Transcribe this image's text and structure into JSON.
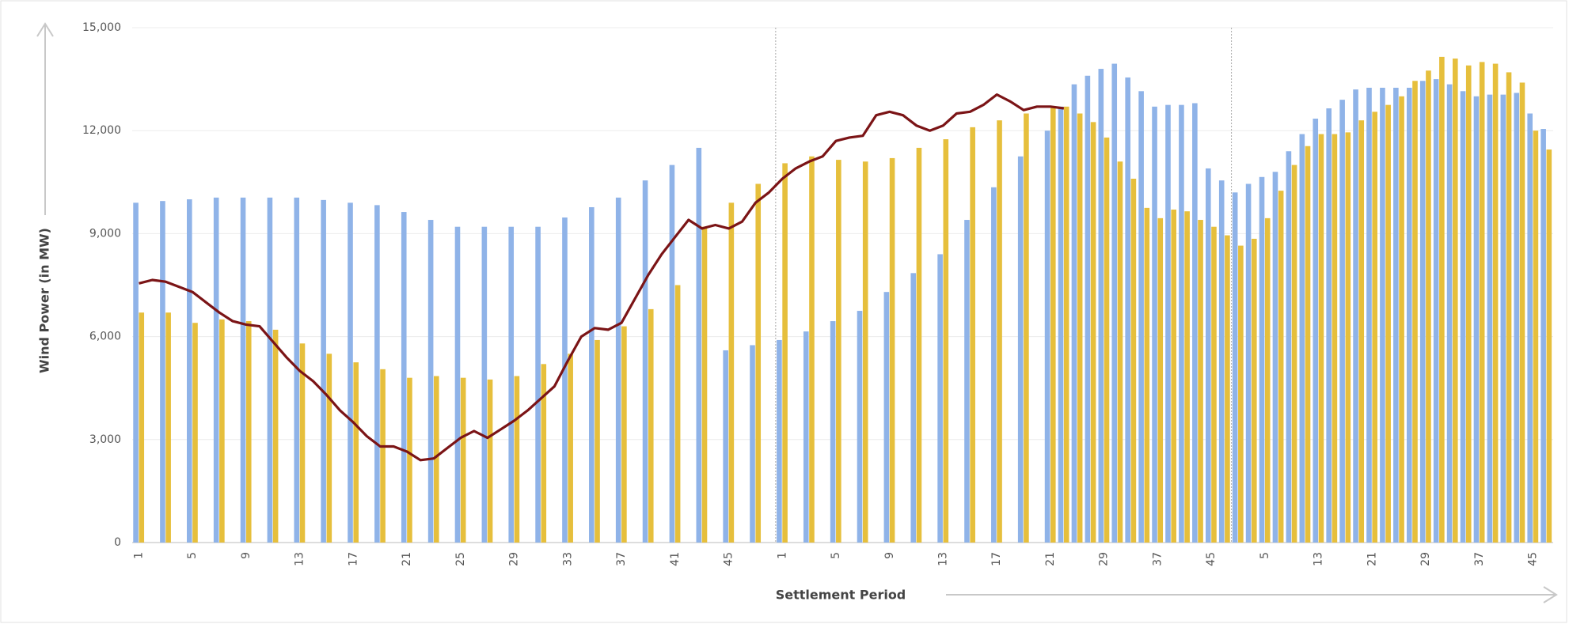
{
  "chart_data": {
    "type": "bar",
    "x_label": "Settlement Period",
    "y_label": "Wind Power (in MW)",
    "ylim": [
      0,
      15000
    ],
    "yticks": [
      0,
      {
        "value": 3000,
        "label": "3,000"
      },
      {
        "value": 6000,
        "label": "6,000"
      },
      {
        "value": 9000,
        "label": "9,000"
      },
      {
        "value": 12000,
        "label": "12,000"
      },
      {
        "value": 15000,
        "label": "15,000"
      }
    ],
    "grid": true,
    "categories": [
      "1",
      null,
      null,
      null,
      "5",
      null,
      null,
      null,
      "9",
      null,
      null,
      null,
      "13",
      null,
      null,
      null,
      "17",
      null,
      null,
      null,
      "21",
      null,
      null,
      null,
      "25",
      null,
      null,
      null,
      "29",
      null,
      null,
      null,
      "33",
      null,
      null,
      null,
      "37",
      null,
      null,
      null,
      "41",
      null,
      null,
      null,
      "45",
      null,
      null,
      null,
      "1",
      null,
      null,
      null,
      "5",
      null,
      null,
      null,
      "9",
      null,
      null,
      null,
      "13",
      null,
      null,
      null,
      "17",
      null,
      null,
      null,
      "21",
      null,
      null,
      null,
      "29",
      null,
      null,
      null,
      "37",
      null,
      null,
      null,
      "45",
      null,
      null,
      null,
      "5",
      null,
      null,
      null,
      "13",
      null,
      null,
      null,
      "21",
      null,
      null,
      null,
      "29",
      null,
      null,
      null,
      "37",
      null,
      null,
      null,
      "45",
      null
    ],
    "series": [
      {
        "type": "bar",
        "color": "#8fb3e8",
        "values": [
          9900,
          null,
          9950,
          null,
          10000,
          null,
          10050,
          null,
          10050,
          null,
          10050,
          null,
          10050,
          null,
          9980,
          null,
          9900,
          null,
          9830,
          null,
          9630,
          null,
          9400,
          null,
          9200,
          null,
          9200,
          null,
          9200,
          null,
          9200,
          null,
          9470,
          null,
          9770,
          null,
          10050,
          null,
          10550,
          null,
          11000,
          null,
          11500,
          null,
          5600,
          null,
          5750,
          null,
          5900,
          null,
          6150,
          null,
          6450,
          null,
          6750,
          null,
          7300,
          null,
          7850,
          null,
          8400,
          null,
          9400,
          null,
          10350,
          null,
          11250,
          null,
          12000,
          12700,
          13350,
          13600,
          13800,
          13950,
          13550,
          13150,
          12700,
          12750,
          12750,
          12800,
          10900,
          10550,
          10200,
          10450,
          10650,
          10800,
          11400,
          11900,
          12350,
          12650,
          12900,
          13200,
          13250,
          13250,
          13250,
          13250,
          13450,
          13500,
          13350,
          13150,
          13000,
          13050,
          13050,
          13100,
          12500,
          12050
        ]
      },
      {
        "type": "bar",
        "color": "#e6bf3c",
        "values": [
          6700,
          null,
          6700,
          null,
          6400,
          null,
          6500,
          null,
          6450,
          null,
          6200,
          null,
          5800,
          null,
          5500,
          null,
          5250,
          null,
          5050,
          null,
          4800,
          null,
          4850,
          null,
          4800,
          null,
          4750,
          null,
          4850,
          null,
          5200,
          null,
          5500,
          null,
          5900,
          null,
          6300,
          null,
          6800,
          null,
          7500,
          null,
          9200,
          null,
          9900,
          null,
          10450,
          null,
          11050,
          null,
          11250,
          null,
          11150,
          null,
          11100,
          null,
          11200,
          null,
          11500,
          null,
          11750,
          null,
          12100,
          null,
          12300,
          null,
          12500,
          null,
          12700,
          12700,
          12500,
          12250,
          11800,
          11100,
          10600,
          9750,
          9450,
          9700,
          9650,
          9400,
          9200,
          8950,
          8650,
          8850,
          9450,
          10250,
          11000,
          11550,
          11900,
          11900,
          11950,
          12300,
          12550,
          12750,
          13000,
          13450,
          13750,
          14150,
          14100,
          13900,
          14000,
          13950,
          13700,
          13400,
          12000,
          11450
        ]
      },
      {
        "type": "line",
        "color": "#7b1416",
        "values": [
          7550,
          7650,
          7600,
          7450,
          7300,
          7000,
          6700,
          6450,
          6350,
          6300,
          5850,
          5400,
          5000,
          4700,
          4300,
          3850,
          3500,
          3100,
          2800,
          2800,
          2650,
          2400,
          2450,
          2750,
          3050,
          3250,
          3050,
          3300,
          3550,
          3850,
          4200,
          4550,
          5300,
          6000,
          6250,
          6200,
          6400,
          7100,
          7800,
          8400,
          8900,
          9400,
          9150,
          9250,
          9150,
          9350,
          9900,
          10200,
          10600,
          10900,
          11100,
          11250,
          11700,
          11800,
          11850,
          12450,
          12550,
          12450,
          12150,
          12000,
          12150,
          12500,
          12550,
          12750,
          13050,
          12850,
          12600,
          12700,
          12700,
          12650,
          null,
          null,
          null,
          null,
          null,
          null,
          null,
          null,
          null,
          null,
          null,
          null,
          null,
          null,
          null,
          null,
          null,
          null,
          null,
          null,
          null,
          null,
          null,
          null,
          null,
          null,
          null,
          null,
          null,
          null,
          null,
          null,
          null,
          null,
          null,
          null
        ]
      }
    ]
  }
}
